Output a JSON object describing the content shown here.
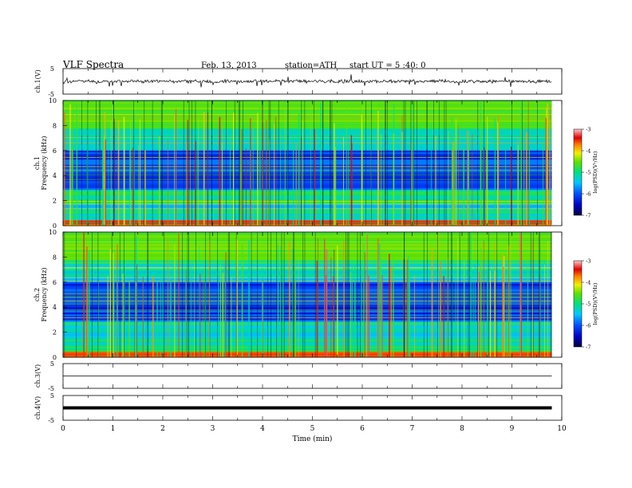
{
  "header": {
    "title": "VLF  Spectra",
    "date": "Feb. 13, 2013",
    "station": "station=ATH",
    "start": "start  UT  =   5  :40: 0"
  },
  "chart_data": [
    {
      "type": "line",
      "name": "ch1-waveform",
      "ylabel": "ch.1(V)",
      "ylim": [
        -5,
        5
      ],
      "yticks": [
        "5",
        "-5"
      ],
      "xlim": [
        0,
        10
      ],
      "baseline": 0,
      "trace_x_end": 9.8
    },
    {
      "type": "heatmap",
      "name": "ch1-spectrogram",
      "ylabel": "ch.1\nFrequency  (kHz)",
      "ylim": [
        0,
        10
      ],
      "yticks": [
        "0",
        "2",
        "4",
        "6",
        "8",
        "10"
      ],
      "xlim": [
        0,
        10
      ],
      "data_x_end": 9.8,
      "colorbar": {
        "label": "log(PSD)(V²/Hz)",
        "range": [
          -7,
          -3
        ],
        "ticks": [
          "-3",
          "-4",
          "-5",
          "-6",
          "-7"
        ]
      }
    },
    {
      "type": "heatmap",
      "name": "ch2-spectrogram",
      "ylabel": "ch.2\nFrequency  (kHz)",
      "ylim": [
        0,
        10
      ],
      "yticks": [
        "0",
        "2",
        "4",
        "6",
        "8",
        "10"
      ],
      "xlim": [
        0,
        10
      ],
      "data_x_end": 9.8,
      "colorbar": {
        "label": "log(PSD)(V²/Hz)",
        "range": [
          -7,
          -3
        ],
        "ticks": [
          "-3",
          "-4",
          "-5",
          "-6",
          "-7"
        ]
      }
    },
    {
      "type": "line",
      "name": "ch3-waveform",
      "ylabel": "ch.3(V)",
      "ylim": [
        -5,
        5
      ],
      "yticks": [
        "5",
        "-5"
      ],
      "xlim": [
        0,
        10
      ],
      "baseline": 0,
      "trace_x_end": 9.8
    },
    {
      "type": "line",
      "name": "ch4-waveform",
      "ylabel": "ch.4(V)",
      "ylim": [
        -5,
        5
      ],
      "yticks": [
        "5",
        "-5"
      ],
      "xlim": [
        0,
        10
      ],
      "baseline": 0,
      "trace_x_end": 9.8,
      "xlabel": "Time  (min)",
      "xticks": [
        "0",
        "1",
        "2",
        "3",
        "4",
        "5",
        "6",
        "7",
        "8",
        "9",
        "10"
      ]
    }
  ]
}
